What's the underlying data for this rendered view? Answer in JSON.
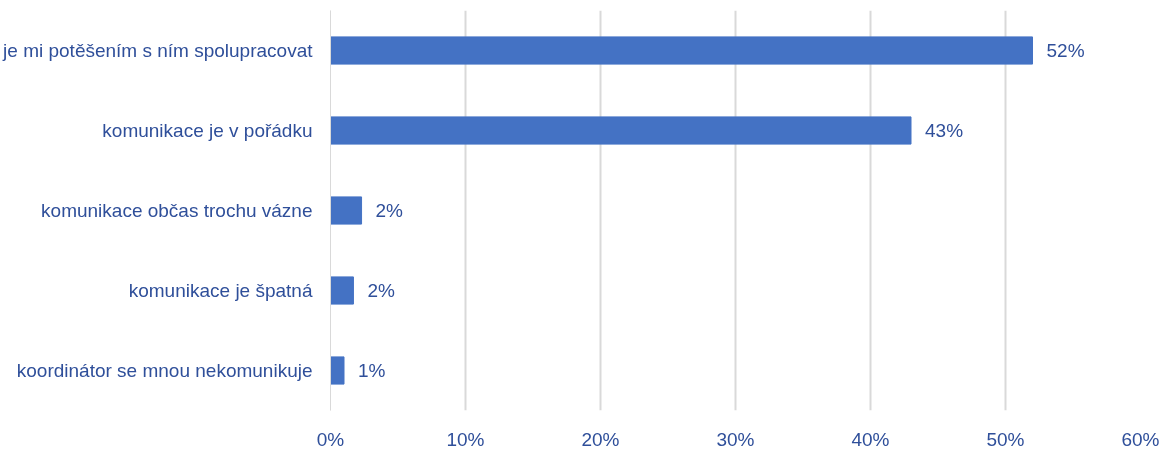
{
  "chart_data": {
    "type": "bar",
    "orientation": "horizontal",
    "categories": [
      "je mi potěšením s ním spolupracovat",
      "komunikace je v pořádku",
      "komunikace občas trochu vázne",
      "komunikace je špatná",
      "koordinátor se mnou nekomunikuje"
    ],
    "values": [
      52,
      43,
      2.3,
      1.7,
      1
    ],
    "value_labels": [
      "52%",
      "43%",
      "2%",
      "2%",
      "1%"
    ],
    "color": "#4472c4",
    "xlim": [
      0,
      60
    ],
    "xticks": [
      {
        "value": 0,
        "label": "0%"
      },
      {
        "value": 10,
        "label": "10%"
      },
      {
        "value": 20,
        "label": "20%"
      },
      {
        "value": 30,
        "label": "30%"
      },
      {
        "value": 40,
        "label": "40%"
      },
      {
        "value": 50,
        "label": "50%"
      },
      {
        "value": 60,
        "label": "60%"
      }
    ],
    "grid": "x"
  }
}
